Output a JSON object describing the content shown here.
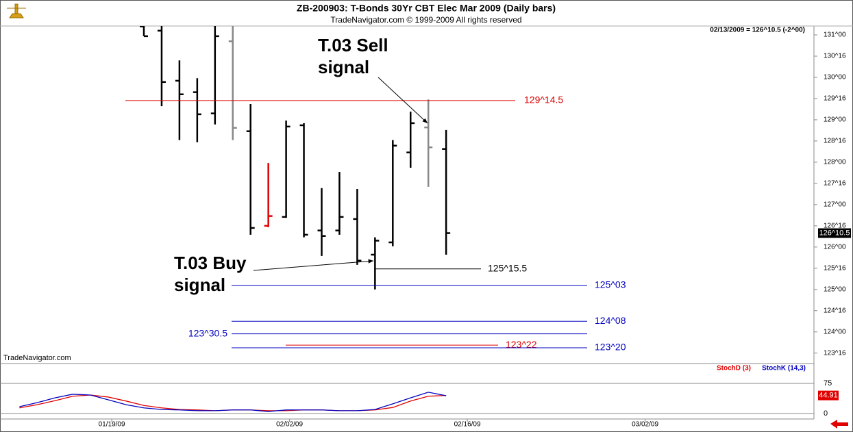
{
  "header": {
    "title": "ZB-200903:  T-Bonds 30Yr CBT Elec Mar 2009  (Daily bars)",
    "subtitle": "TradeNavigator.com © 1999-2009 All rights reserved",
    "info": "02/13/2009 = 126^10.5 (-2^00)",
    "watermark": "TradeNavigator.com"
  },
  "chart_data": [
    {
      "type": "ohlc",
      "x": [
        "01/21/09",
        "01/22/09",
        "01/23/09",
        "01/26/09",
        "01/27/09",
        "01/28/09",
        "01/29/09",
        "01/30/09",
        "02/02/09",
        "02/03/09",
        "02/04/09",
        "02/05/09",
        "02/06/09",
        "02/09/09",
        "02/10/09",
        "02/11/09",
        "02/12/09",
        "02/13/09"
      ],
      "series": [
        {
          "open": [
            131.2,
            131.1,
            129.92,
            129.65,
            129.15,
            130.85,
            128.73,
            126.5,
            126.71,
            128.87,
            126.39,
            126.39,
            126.66,
            125.82,
            126.11,
            128.23,
            128.82,
            128.31
          ],
          "high": [
            131.3,
            131.3,
            130.4,
            129.98,
            131.3,
            131.3,
            129.37,
            127.98,
            128.98,
            128.92,
            127.39,
            127.77,
            127.37,
            126.23,
            128.52,
            129.19,
            129.48,
            128.76
          ],
          "low": [
            130.97,
            129.32,
            128.52,
            128.47,
            128.89,
            128.52,
            126.29,
            126.47,
            126.69,
            126.23,
            125.79,
            126.29,
            125.58,
            125.0,
            126.02,
            127.87,
            127.42,
            125.82
          ],
          "close": [
            130.97,
            129.89,
            129.6,
            129.13,
            130.97,
            128.81,
            126.45,
            126.73,
            128.84,
            126.29,
            126.26,
            126.71,
            125.68,
            126.15,
            128.39,
            128.92,
            128.35,
            126.328
          ],
          "colors": [
            "#000000",
            "#000000",
            "#000000",
            "#000000",
            "#000000",
            "#888888",
            "#000000",
            "#e00000",
            "#000000",
            "#000000",
            "#000000",
            "#000000",
            "#000000",
            "#000000",
            "#000000",
            "#000000",
            "#888888",
            "#000000"
          ]
        }
      ],
      "ylim": [
        123.27,
        131.21
      ],
      "yticks": [
        {
          "value": 131,
          "label": "131^00"
        },
        {
          "value": 130.5,
          "label": "130^16"
        },
        {
          "value": 130,
          "label": "130^00"
        },
        {
          "value": 129.5,
          "label": "129^16"
        },
        {
          "value": 129,
          "label": "129^00"
        },
        {
          "value": 128.5,
          "label": "128^16"
        },
        {
          "value": 128,
          "label": "128^00"
        },
        {
          "value": 127.5,
          "label": "127^16"
        },
        {
          "value": 127,
          "label": "127^00"
        },
        {
          "value": 126.5,
          "label": "126^16"
        },
        {
          "value": 126,
          "label": "126^00"
        },
        {
          "value": 125.5,
          "label": "125^16"
        },
        {
          "value": 125,
          "label": "125^00"
        },
        {
          "value": 124.5,
          "label": "124^16"
        },
        {
          "value": 124,
          "label": "124^00"
        },
        {
          "value": 123.5,
          "label": "123^16"
        }
      ],
      "last_price_label": "126^10.5",
      "levels": [
        {
          "value": 129.453,
          "label": "129^14.5",
          "color": "#e00000"
        },
        {
          "value": 125.484,
          "label": "125^15.5",
          "color": "#000000"
        },
        {
          "value": 125.094,
          "label": "125^03",
          "color": "#0000c0"
        },
        {
          "value": 124.25,
          "label": "124^08",
          "color": "#0000c0"
        },
        {
          "value": 123.953,
          "label": "123^30.5",
          "color": "#0000c0"
        },
        {
          "value": 123.6875,
          "label": "123^22",
          "color": "#e00000"
        },
        {
          "value": 123.625,
          "label": "123^20",
          "color": "#0000c0"
        }
      ],
      "annotations": [
        {
          "lines": [
            "T.03 Sell",
            "signal"
          ]
        },
        {
          "lines": [
            "T.03 Buy",
            "signal"
          ]
        }
      ]
    },
    {
      "type": "line",
      "x": [
        "01/12/09",
        "01/13/09",
        "01/14/09",
        "01/15/09",
        "01/16/09",
        "01/19/09",
        "01/20/09",
        "01/21/09",
        "01/22/09",
        "01/23/09",
        "01/26/09",
        "01/27/09",
        "01/28/09",
        "01/29/09",
        "01/30/09",
        "02/02/09",
        "02/03/09",
        "02/04/09",
        "02/05/09",
        "02/06/09",
        "02/09/09",
        "02/10/09",
        "02/11/09",
        "02/12/09",
        "02/13/09"
      ],
      "series": [
        {
          "name": "StochD (3)",
          "color": "#e00000",
          "values": [
            14,
            22,
            32,
            43,
            46,
            41,
            31,
            20,
            14,
            10,
            9,
            7,
            9,
            9,
            7,
            7,
            9,
            9,
            7,
            7,
            9,
            15,
            31,
            43,
            44.91
          ]
        },
        {
          "name": "StochK (14,3)",
          "color": "#0000c0",
          "values": [
            17,
            27,
            39,
            48,
            46,
            34,
            22,
            14,
            10,
            9,
            7,
            7,
            9,
            9,
            5,
            9,
            9,
            9,
            7,
            7,
            10,
            24,
            39,
            53,
            44.3
          ]
        }
      ],
      "ylim": [
        -13.6,
        119.2
      ],
      "yticks": [
        0,
        75
      ],
      "last_value_label": "44.91",
      "xticks": [
        "01/19/09",
        "02/02/09",
        "02/16/09",
        "03/02/09"
      ]
    }
  ]
}
